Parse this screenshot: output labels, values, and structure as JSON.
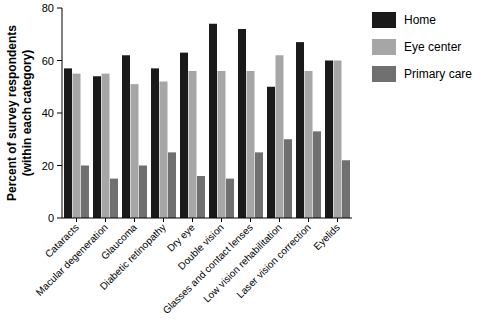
{
  "chart_data": {
    "type": "bar",
    "y_label": [
      "Percent of survey respondents",
      "(within each category)"
    ],
    "categories": [
      "Cataracts",
      "Macular degeneration",
      "Glaucoma",
      "Diabetic retinopathy",
      "Dry eye",
      "Double vision",
      "Glasses and contact lenses",
      "Low vision rehabilitation",
      "Laser vision correction",
      "Eyelids"
    ],
    "series": [
      {
        "name": "Home",
        "color": "#1a1a1a",
        "values": [
          57,
          54,
          62,
          57,
          63,
          74,
          72,
          50,
          67,
          60
        ]
      },
      {
        "name": "Eye center",
        "color": "#a6a6a6",
        "values": [
          55,
          55,
          51,
          52,
          56,
          56,
          56,
          62,
          56,
          60
        ]
      },
      {
        "name": "Primary care",
        "color": "#707070",
        "values": [
          20,
          15,
          20,
          25,
          16,
          15,
          25,
          30,
          33,
          22
        ]
      }
    ],
    "ylim": [
      0,
      80
    ],
    "yticks": [
      0,
      20,
      40,
      60,
      80
    ],
    "grid": false,
    "legend": "upper right"
  }
}
